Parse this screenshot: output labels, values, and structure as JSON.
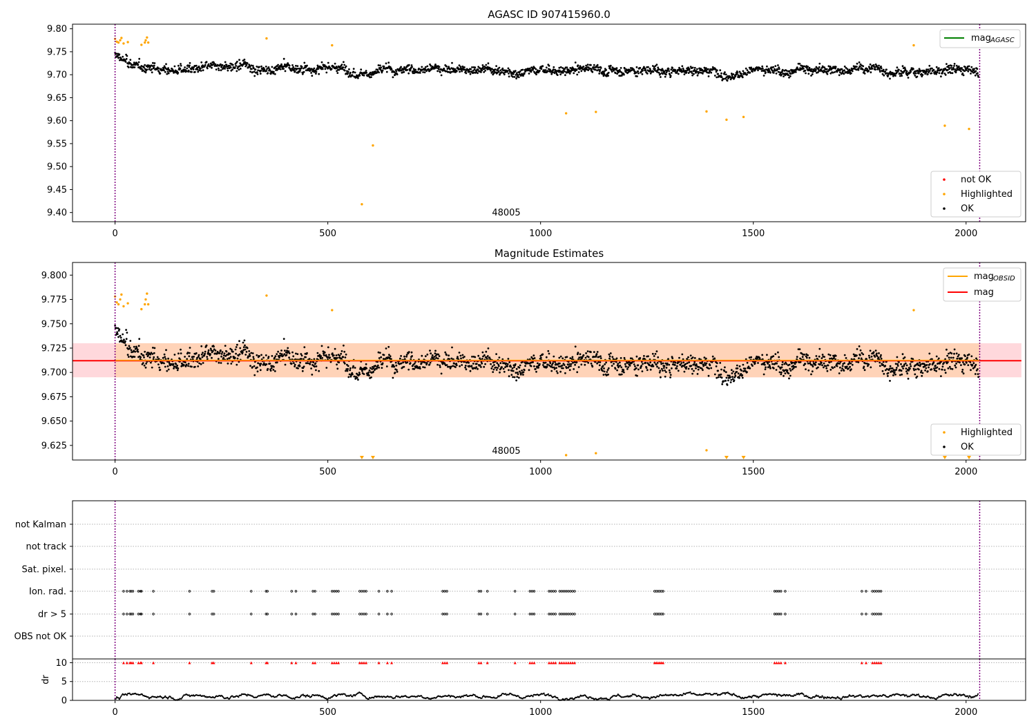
{
  "chart_data": [
    {
      "type": "scatter",
      "title": "AGASC ID 907415960.0",
      "xlim": [
        -100,
        2140
      ],
      "ylim": [
        9.38,
        9.81
      ],
      "x_ticks": [
        "0",
        "500",
        "1000",
        "1500",
        "2000"
      ],
      "y_ticks": [
        "9.40",
        "9.45",
        "9.50",
        "9.55",
        "9.60",
        "9.65",
        "9.70",
        "9.75",
        "9.80"
      ],
      "annotation": "48005",
      "vlines_x": [
        0,
        2032
      ],
      "legend_lines": [
        {
          "name": "mag",
          "sub": "AGASC",
          "color": "#008000"
        }
      ],
      "legend_points": [
        {
          "name": "not OK",
          "color": "#ff0000"
        },
        {
          "name": "Highlighted",
          "color": "#ffa500"
        },
        {
          "name": "OK",
          "color": "#000000"
        }
      ],
      "agasc_mag": 9.718,
      "ok_series": {
        "baseline": 9.712,
        "scatter": 0.012,
        "count": 2030
      },
      "highlighted": [
        [
          0,
          9.778
        ],
        [
          4,
          9.772
        ],
        [
          8,
          9.77
        ],
        [
          12,
          9.775
        ],
        [
          15,
          9.78
        ],
        [
          20,
          9.768
        ],
        [
          30,
          9.771
        ],
        [
          62,
          9.765
        ],
        [
          70,
          9.77
        ],
        [
          72,
          9.775
        ],
        [
          75,
          9.781
        ],
        [
          78,
          9.77
        ],
        [
          356,
          9.779
        ],
        [
          510,
          9.764
        ],
        [
          580,
          9.418
        ],
        [
          606,
          9.546
        ],
        [
          1060,
          9.616
        ],
        [
          1130,
          9.619
        ],
        [
          1390,
          9.62
        ],
        [
          1437,
          9.602
        ],
        [
          1477,
          9.608
        ],
        [
          1877,
          9.764
        ],
        [
          1950,
          9.589
        ],
        [
          2007,
          9.582
        ]
      ]
    },
    {
      "type": "scatter",
      "title": "Magnitude Estimates",
      "xlim": [
        -100,
        2140
      ],
      "ylim": [
        9.61,
        9.813
      ],
      "x_ticks": [
        "0",
        "500",
        "1000",
        "1500",
        "2000"
      ],
      "y_ticks": [
        "9.625",
        "9.650",
        "9.675",
        "9.700",
        "9.725",
        "9.750",
        "9.775",
        "9.800"
      ],
      "annotation": "48005",
      "vlines_x": [
        0,
        2032
      ],
      "mag": 9.712,
      "mag_band": [
        9.695,
        9.73
      ],
      "legend_lines": [
        {
          "name": "mag",
          "sub": "OBSID",
          "color": "#ffa500"
        },
        {
          "name": "mag",
          "sub": "",
          "color": "#ff0000"
        }
      ],
      "legend_points": [
        {
          "name": "Highlighted",
          "color": "#ffa500"
        },
        {
          "name": "OK",
          "color": "#000000"
        }
      ],
      "highlighted": [
        [
          0,
          9.778
        ],
        [
          4,
          9.772
        ],
        [
          8,
          9.77
        ],
        [
          12,
          9.775
        ],
        [
          15,
          9.78
        ],
        [
          20,
          9.768
        ],
        [
          30,
          9.771
        ],
        [
          62,
          9.765
        ],
        [
          70,
          9.77
        ],
        [
          72,
          9.775
        ],
        [
          75,
          9.781
        ],
        [
          78,
          9.77
        ],
        [
          356,
          9.779
        ],
        [
          510,
          9.764
        ],
        [
          1060,
          9.615
        ],
        [
          1130,
          9.617
        ],
        [
          1390,
          9.62
        ],
        [
          1877,
          9.764
        ]
      ],
      "off_scale_x": [
        580,
        606,
        1437,
        1477,
        1950,
        2007
      ]
    },
    {
      "type": "scatter",
      "categories": [
        "not Kalman",
        "not track",
        "Sat. pixel.",
        "Ion. rad.",
        "dr > 5",
        "OBS not OK"
      ],
      "flag_x": [
        20,
        28,
        35,
        38,
        42,
        55,
        60,
        62,
        90,
        175,
        228,
        232,
        320,
        355,
        358,
        415,
        425,
        465,
        470,
        510,
        515,
        520,
        525,
        575,
        580,
        585,
        590,
        620,
        640,
        650,
        770,
        775,
        780,
        855,
        860,
        875,
        940,
        975,
        980,
        985,
        1020,
        1025,
        1030,
        1035,
        1045,
        1050,
        1055,
        1060,
        1065,
        1070,
        1075,
        1080,
        1268,
        1272,
        1276,
        1280,
        1284,
        1288,
        1550,
        1555,
        1560,
        1565,
        1575,
        1755,
        1765,
        1780,
        1785,
        1790,
        1795,
        1800
      ],
      "x_ticks": [
        "0",
        "500",
        "1000",
        "1500",
        "2000"
      ],
      "vlines_x": [
        0,
        2032
      ]
    },
    {
      "type": "line",
      "ylabel": "dr",
      "xlim": [
        -100,
        2140
      ],
      "ylim": [
        0,
        11
      ],
      "y_ticks": [
        "0",
        "5",
        "10"
      ],
      "x_ticks": [
        "0",
        "500",
        "1000",
        "1500",
        "2000"
      ],
      "vlines_x": [
        0,
        2032
      ],
      "clip_marker_y": 10
    }
  ]
}
